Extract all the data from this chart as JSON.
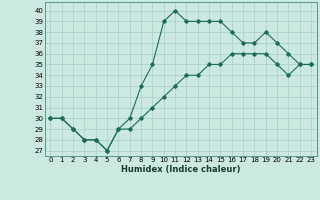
{
  "xlabel": "Humidex (Indice chaleur)",
  "ylabel": "",
  "bg_color": "#cce9e1",
  "line_color": "#1a6b5a",
  "grid_color": "#a8cfc7",
  "xlim": [
    -0.5,
    23.5
  ],
  "ylim": [
    26.5,
    40.8
  ],
  "xticks": [
    0,
    1,
    2,
    3,
    4,
    5,
    6,
    7,
    8,
    9,
    10,
    11,
    12,
    13,
    14,
    15,
    16,
    17,
    18,
    19,
    20,
    21,
    22,
    23
  ],
  "yticks": [
    27,
    28,
    29,
    30,
    31,
    32,
    33,
    34,
    35,
    36,
    37,
    38,
    39,
    40
  ],
  "line1_x": [
    0,
    1,
    2,
    3,
    4,
    5,
    6,
    7,
    8,
    9,
    10,
    11,
    12,
    13,
    14,
    15,
    16,
    17,
    18,
    19,
    20,
    21,
    22,
    23
  ],
  "line1_y": [
    30,
    30,
    29,
    28,
    28,
    27,
    29,
    30,
    33,
    35,
    39,
    40,
    39,
    39,
    39,
    39,
    38,
    37,
    37,
    38,
    37,
    36,
    35,
    35
  ],
  "line2_x": [
    0,
    1,
    2,
    3,
    4,
    5,
    6,
    7,
    8,
    9,
    10,
    11,
    12,
    13,
    14,
    15,
    16,
    17,
    18,
    19,
    20,
    21,
    22,
    23
  ],
  "line2_y": [
    30,
    30,
    29,
    28,
    28,
    27,
    29,
    29,
    30,
    31,
    32,
    33,
    34,
    34,
    35,
    35,
    36,
    36,
    36,
    36,
    35,
    34,
    35,
    35
  ]
}
